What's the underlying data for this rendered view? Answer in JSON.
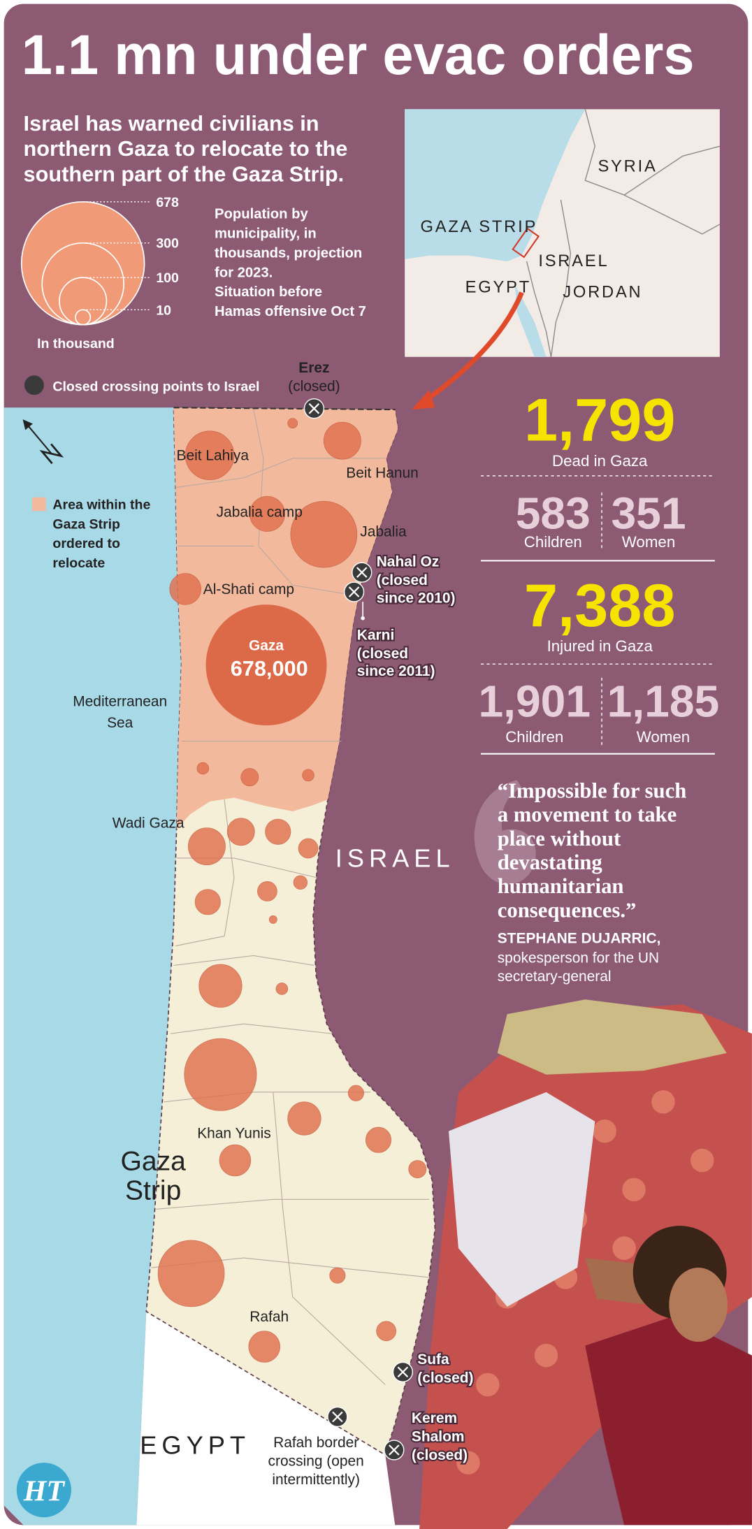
{
  "title": "1.1 mn under evac orders",
  "subtitle": [
    "Israel has warned civilians in",
    "northern Gaza to relocate to the",
    "southern part of the Gaza Strip."
  ],
  "size_legend": {
    "values": [
      678,
      300,
      100,
      10
    ],
    "unit": "In thousand",
    "note": [
      "Population by",
      "municipality, in",
      "thousands, projection",
      "for 2023.",
      "Situation before",
      "Hamas offensive Oct 7"
    ]
  },
  "inset_map": {
    "labels": [
      "SYRIA",
      "GAZA STRIP",
      "ISRAEL",
      "EGYPT",
      "JORDAN"
    ]
  },
  "map": {
    "legend_crossing": "Closed crossing points to Israel",
    "legend_area": [
      "Area within the",
      "Gaza Strip",
      "ordered to",
      "relocate"
    ],
    "places": [
      "Beit Lahiya",
      "Beit Hanun",
      "Jabalia camp",
      "Jabalia",
      "Al-Shati camp",
      "Wadi Gaza",
      "Khan Yunis",
      "Rafah"
    ],
    "gaza_city": {
      "name": "Gaza",
      "population": "678,000"
    },
    "sea": [
      "Mediterranean",
      "Sea"
    ],
    "israel": "ISRAEL",
    "strip": [
      "Gaza",
      "Strip"
    ],
    "egypt": "EGYPT",
    "crossings": [
      {
        "name": [
          "Erez"
        ],
        "status": [
          "(closed)"
        ]
      },
      {
        "name": [
          "Nahal Oz"
        ],
        "status": [
          "(closed",
          "since 2010)"
        ]
      },
      {
        "name": [
          "Karni"
        ],
        "status": [
          "(closed",
          "since 2011)"
        ]
      },
      {
        "name": [
          "Sufa"
        ],
        "status": [
          "(closed)"
        ]
      },
      {
        "name": [
          "Kerem",
          "Shalom"
        ],
        "status": [
          "(closed)"
        ]
      }
    ],
    "rafah_crossing": [
      "Rafah border",
      "crossing (open",
      "intermittently)"
    ]
  },
  "stats": [
    {
      "total": "1,799",
      "label": "Dead in Gaza",
      "breakdown": [
        {
          "value": "583",
          "label": "Children"
        },
        {
          "value": "351",
          "label": "Women"
        }
      ]
    },
    {
      "total": "7,388",
      "label": "Injured in Gaza",
      "breakdown": [
        {
          "value": "1,901",
          "label": "Children"
        },
        {
          "value": "1,185",
          "label": "Women"
        }
      ]
    }
  ],
  "quote": {
    "text": [
      "“Impossible for such",
      "a movement to take",
      "place without",
      "devastating",
      "humanitarian",
      "consequences.”"
    ],
    "author": "STEPHANE DUJARRIC,",
    "role": [
      "spokesperson for the UN",
      "secretary-general"
    ]
  },
  "logo": "HT"
}
